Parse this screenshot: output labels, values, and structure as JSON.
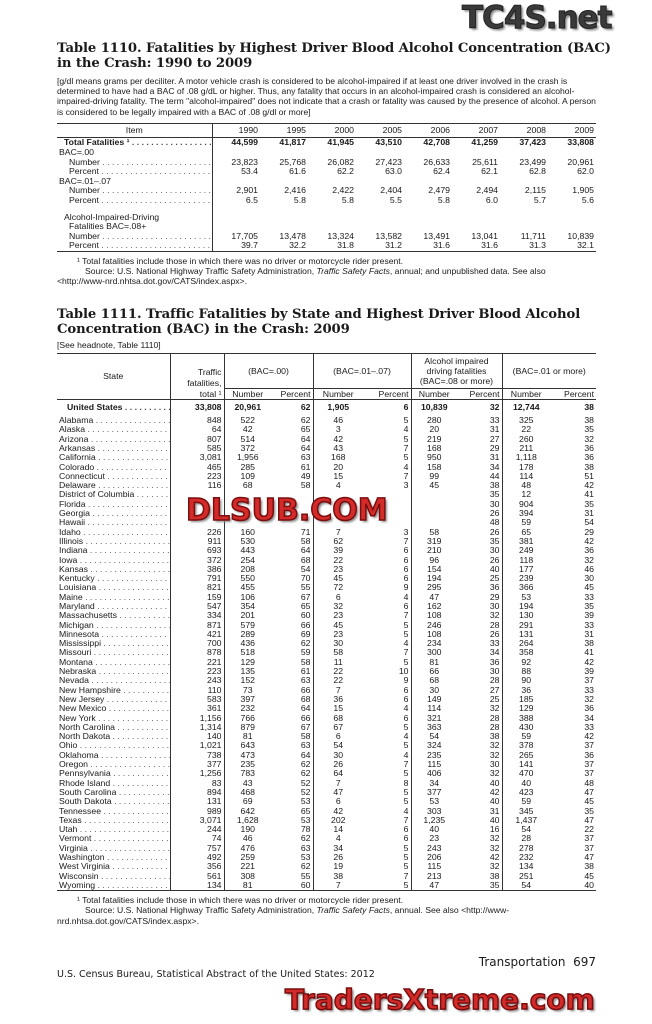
{
  "watermarks": {
    "top": "TC4S.net",
    "middle": "DLSUB.COM",
    "bottom": "TradersXtreme.com"
  },
  "table1110": {
    "title_line1": "Table 1110. Fatalities by Highest Driver Blood Alcohol Concentration (BAC)",
    "title_line2": "in the Crash: 1990 to 2009",
    "headnote": "[g/dl means grams per deciliter. A motor vehicle crash is considered to be alcohol-impaired if at least one driver involved in the crash is determined to have had a BAC of .08 g/dL or higher. Thus, any fatality that occurs in an alcohol-impaired crash is considered an alcohol-impaired-driving fatality. The term \"alcohol-impaired\" does not indicate that a crash or fatality was caused by the presence of alcohol. A person is considered to be legally impaired with a BAC of .08 g/dl or more]",
    "item_header": "Item",
    "years": [
      "1990",
      "1995",
      "2000",
      "2005",
      "2006",
      "2007",
      "2008",
      "2009"
    ],
    "rows": [
      {
        "label": "Total Fatalities ¹",
        "indent": 1,
        "bold": true,
        "dots": true,
        "values": [
          "44,599",
          "41,817",
          "41,945",
          "43,510",
          "42,708",
          "41,259",
          "37,423",
          "33,808"
        ]
      },
      {
        "label": "BAC=.00",
        "indent": 0,
        "values": []
      },
      {
        "label": "Number",
        "indent": 2,
        "dots": true,
        "values": [
          "23,823",
          "25,768",
          "26,082",
          "27,423",
          "26,633",
          "25,611",
          "23,499",
          "20,961"
        ]
      },
      {
        "label": "Percent",
        "indent": 2,
        "dots": true,
        "values": [
          "53.4",
          "61.6",
          "62.2",
          "63.0",
          "62.4",
          "62.1",
          "62.8",
          "62.0"
        ]
      },
      {
        "label": "BAC=.01–.07",
        "indent": 0,
        "values": []
      },
      {
        "label": "Number",
        "indent": 2,
        "dots": true,
        "values": [
          "2,901",
          "2,416",
          "2,422",
          "2,404",
          "2,479",
          "2,494",
          "2,115",
          "1,905"
        ]
      },
      {
        "label": "Percent",
        "indent": 2,
        "dots": true,
        "values": [
          "6.5",
          "5.8",
          "5.8",
          "5.5",
          "5.8",
          "6.0",
          "5.7",
          "5.6"
        ]
      },
      {
        "label": "Alcohol-Impaired-Driving",
        "indent": 1,
        "gap": true,
        "values": []
      },
      {
        "label": "Fatalities BAC=.08+",
        "indent": 2,
        "values": []
      },
      {
        "label": "Number",
        "indent": 2,
        "dots": true,
        "values": [
          "17,705",
          "13,478",
          "13,324",
          "13,582",
          "13,491",
          "13,041",
          "11,711",
          "10,839"
        ]
      },
      {
        "label": "Percent",
        "indent": 2,
        "dots": true,
        "values": [
          "39.7",
          "32.2",
          "31.8",
          "31.2",
          "31.6",
          "31.6",
          "31.3",
          "32.1"
        ]
      }
    ],
    "footnote": "¹ Total fatalities include those in which there was no driver or motorcycle rider present.",
    "source_prefix": "Source: U.S. National Highway Traffic Safety Administration, ",
    "source_italic": "Traffic Safety Facts",
    "source_suffix": ", annual; and unpublished data. See also <http://www-nrd.nhtsa.dot.gov/CATS/index.aspx>."
  },
  "table1111": {
    "title_line1": "Table 1111. Traffic Fatalities by State and Highest Driver Blood Alcohol",
    "title_line2": "Concentration (BAC) in the Crash: 2009",
    "headnote": "[See headnote, Table 1110]",
    "headers": {
      "state": "State",
      "total_l1": "Traffic",
      "total_l2": "fatalities,",
      "total_l3": "total ¹",
      "bac00": "(BAC=.00)",
      "bac0107": "(BAC=.01–.07)",
      "bac08_l1": "Alcohol impaired",
      "bac08_l2": "driving fatalities",
      "bac08_l3": "(BAC=.08 or more)",
      "bac01plus": "(BAC=.01 or more)",
      "number": "Number",
      "percent": "Percent"
    },
    "us_row": {
      "state": "United States",
      "values": [
        "33,808",
        "20,961",
        "62",
        "1,905",
        "6",
        "10,839",
        "32",
        "12,744",
        "38"
      ]
    },
    "rows": [
      {
        "state": "Alabama",
        "values": [
          "848",
          "522",
          "62",
          "46",
          "5",
          "280",
          "33",
          "325",
          "38"
        ]
      },
      {
        "state": "Alaska",
        "values": [
          "64",
          "42",
          "65",
          "3",
          "4",
          "20",
          "31",
          "22",
          "35"
        ]
      },
      {
        "state": "Arizona",
        "values": [
          "807",
          "514",
          "64",
          "42",
          "5",
          "219",
          "27",
          "260",
          "32"
        ]
      },
      {
        "state": "Arkansas",
        "values": [
          "585",
          "372",
          "64",
          "43",
          "7",
          "168",
          "29",
          "211",
          "36"
        ]
      },
      {
        "state": "California",
        "values": [
          "3,081",
          "1,956",
          "63",
          "168",
          "5",
          "950",
          "31",
          "1,118",
          "36"
        ]
      },
      {
        "state": "Colorado",
        "values": [
          "465",
          "285",
          "61",
          "20",
          "4",
          "158",
          "34",
          "178",
          "38"
        ]
      },
      {
        "state": "Connecticut",
        "values": [
          "223",
          "109",
          "49",
          "15",
          "7",
          "99",
          "44",
          "114",
          "51"
        ]
      },
      {
        "state": "Delaware",
        "values": [
          "116",
          "68",
          "58",
          "4",
          "3",
          "45",
          "38",
          "48",
          "42"
        ]
      },
      {
        "state": "District of Columbia",
        "values": [
          "",
          "",
          "",
          "",
          "",
          "",
          "35",
          "12",
          "41"
        ]
      },
      {
        "state": "Florida",
        "values": [
          "",
          "",
          "",
          "",
          "",
          "",
          "30",
          "904",
          "35"
        ]
      },
      {
        "state": "Georgia",
        "values": [
          "",
          "",
          "",
          "",
          "",
          "",
          "26",
          "394",
          "31"
        ]
      },
      {
        "state": "Hawaii",
        "values": [
          "",
          "",
          "",
          "",
          "",
          "",
          "48",
          "59",
          "54"
        ]
      },
      {
        "state": "Idaho",
        "values": [
          "226",
          "160",
          "71",
          "7",
          "3",
          "58",
          "26",
          "65",
          "29"
        ]
      },
      {
        "state": "Illinois",
        "values": [
          "911",
          "530",
          "58",
          "62",
          "7",
          "319",
          "35",
          "381",
          "42"
        ]
      },
      {
        "state": "Indiana",
        "values": [
          "693",
          "443",
          "64",
          "39",
          "6",
          "210",
          "30",
          "249",
          "36"
        ]
      },
      {
        "state": "Iowa",
        "values": [
          "372",
          "254",
          "68",
          "22",
          "6",
          "96",
          "26",
          "118",
          "32"
        ]
      },
      {
        "state": "Kansas",
        "values": [
          "386",
          "208",
          "54",
          "23",
          "6",
          "154",
          "40",
          "177",
          "46"
        ]
      },
      {
        "state": "Kentucky",
        "values": [
          "791",
          "550",
          "70",
          "45",
          "6",
          "194",
          "25",
          "239",
          "30"
        ]
      },
      {
        "state": "Louisiana",
        "values": [
          "821",
          "455",
          "55",
          "72",
          "9",
          "295",
          "36",
          "366",
          "45"
        ]
      },
      {
        "state": "Maine",
        "values": [
          "159",
          "106",
          "67",
          "6",
          "4",
          "47",
          "29",
          "53",
          "33"
        ]
      },
      {
        "state": "Maryland",
        "values": [
          "547",
          "354",
          "65",
          "32",
          "6",
          "162",
          "30",
          "194",
          "35"
        ]
      },
      {
        "state": "Massachusetts",
        "values": [
          "334",
          "201",
          "60",
          "23",
          "7",
          "108",
          "32",
          "130",
          "39"
        ]
      },
      {
        "state": "Michigan",
        "values": [
          "871",
          "579",
          "66",
          "45",
          "5",
          "246",
          "28",
          "291",
          "33"
        ]
      },
      {
        "state": "Minnesota",
        "values": [
          "421",
          "289",
          "69",
          "23",
          "5",
          "108",
          "26",
          "131",
          "31"
        ]
      },
      {
        "state": "Mississippi",
        "values": [
          "700",
          "436",
          "62",
          "30",
          "4",
          "234",
          "33",
          "264",
          "38"
        ]
      },
      {
        "state": "Missouri",
        "values": [
          "878",
          "518",
          "59",
          "58",
          "7",
          "300",
          "34",
          "358",
          "41"
        ]
      },
      {
        "state": "Montana",
        "values": [
          "221",
          "129",
          "58",
          "11",
          "5",
          "81",
          "36",
          "92",
          "42"
        ]
      },
      {
        "state": "Nebraska",
        "values": [
          "223",
          "135",
          "61",
          "22",
          "10",
          "66",
          "30",
          "88",
          "39"
        ]
      },
      {
        "state": "Nevada",
        "values": [
          "243",
          "152",
          "63",
          "22",
          "9",
          "68",
          "28",
          "90",
          "37"
        ]
      },
      {
        "state": "New Hampshire",
        "values": [
          "110",
          "73",
          "66",
          "7",
          "6",
          "30",
          "27",
          "36",
          "33"
        ]
      },
      {
        "state": "New Jersey",
        "values": [
          "583",
          "397",
          "68",
          "36",
          "6",
          "149",
          "25",
          "185",
          "32"
        ]
      },
      {
        "state": "New Mexico",
        "values": [
          "361",
          "232",
          "64",
          "15",
          "4",
          "114",
          "32",
          "129",
          "36"
        ]
      },
      {
        "state": "New York",
        "values": [
          "1,156",
          "766",
          "66",
          "68",
          "6",
          "321",
          "28",
          "388",
          "34"
        ]
      },
      {
        "state": "North Carolina",
        "values": [
          "1,314",
          "879",
          "67",
          "67",
          "5",
          "363",
          "28",
          "430",
          "33"
        ]
      },
      {
        "state": "North Dakota",
        "values": [
          "140",
          "81",
          "58",
          "6",
          "4",
          "54",
          "38",
          "59",
          "42"
        ]
      },
      {
        "state": "Ohio",
        "values": [
          "1,021",
          "643",
          "63",
          "54",
          "5",
          "324",
          "32",
          "378",
          "37"
        ]
      },
      {
        "state": "Oklahoma",
        "values": [
          "738",
          "473",
          "64",
          "30",
          "4",
          "235",
          "32",
          "265",
          "36"
        ]
      },
      {
        "state": "Oregon",
        "values": [
          "377",
          "235",
          "62",
          "26",
          "7",
          "115",
          "30",
          "141",
          "37"
        ]
      },
      {
        "state": "Pennsylvania",
        "values": [
          "1,256",
          "783",
          "62",
          "64",
          "5",
          "406",
          "32",
          "470",
          "37"
        ]
      },
      {
        "state": "Rhode Island",
        "values": [
          "83",
          "43",
          "52",
          "7",
          "8",
          "34",
          "40",
          "40",
          "48"
        ]
      },
      {
        "state": "South Carolina",
        "values": [
          "894",
          "468",
          "52",
          "47",
          "5",
          "377",
          "42",
          "423",
          "47"
        ]
      },
      {
        "state": "South Dakota",
        "values": [
          "131",
          "69",
          "53",
          "6",
          "5",
          "53",
          "40",
          "59",
          "45"
        ]
      },
      {
        "state": "Tennessee",
        "values": [
          "989",
          "642",
          "65",
          "42",
          "4",
          "303",
          "31",
          "345",
          "35"
        ]
      },
      {
        "state": "Texas",
        "values": [
          "3,071",
          "1,628",
          "53",
          "202",
          "7",
          "1,235",
          "40",
          "1,437",
          "47"
        ]
      },
      {
        "state": "Utah",
        "values": [
          "244",
          "190",
          "78",
          "14",
          "6",
          "40",
          "16",
          "54",
          "22"
        ]
      },
      {
        "state": "Vermont",
        "values": [
          "74",
          "46",
          "62",
          "4",
          "6",
          "23",
          "32",
          "28",
          "37"
        ]
      },
      {
        "state": "Virginia",
        "values": [
          "757",
          "476",
          "63",
          "34",
          "5",
          "243",
          "32",
          "278",
          "37"
        ]
      },
      {
        "state": "Washington",
        "values": [
          "492",
          "259",
          "53",
          "26",
          "5",
          "206",
          "42",
          "232",
          "47"
        ]
      },
      {
        "state": "West Virginia",
        "values": [
          "356",
          "221",
          "62",
          "19",
          "5",
          "115",
          "32",
          "134",
          "38"
        ]
      },
      {
        "state": "Wisconsin",
        "values": [
          "561",
          "308",
          "55",
          "38",
          "7",
          "213",
          "38",
          "251",
          "45"
        ]
      },
      {
        "state": "Wyoming",
        "values": [
          "134",
          "81",
          "60",
          "7",
          "5",
          "47",
          "35",
          "54",
          "40"
        ]
      }
    ],
    "footnote": "¹ Total fatalities include those in which there was no driver or motorcycle rider present.",
    "source_prefix": "Source: U.S. National Highway Traffic Safety Administration, ",
    "source_italic": "Traffic Safety Facts",
    "source_suffix": ", annual. See also <http://www-nrd.nhtsa.dot.gov/CATS/index.aspx>."
  },
  "footer": {
    "section": "Transportation",
    "page_number": "697",
    "publication": "U.S. Census Bureau, Statistical Abstract of the United States: 2012"
  }
}
